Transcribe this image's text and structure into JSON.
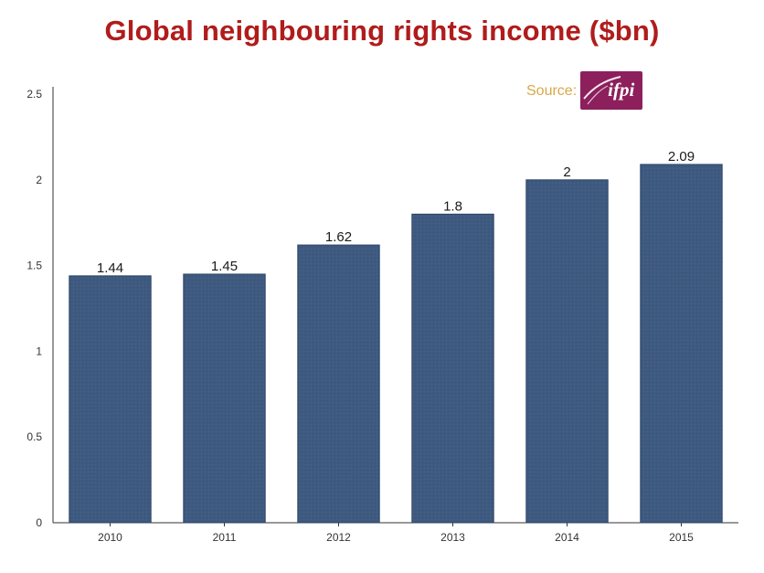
{
  "chart_data": {
    "type": "bar",
    "title": "Global neighbouring rights income ($bn)",
    "categories": [
      "2010",
      "2011",
      "2012",
      "2013",
      "2014",
      "2015"
    ],
    "values": [
      1.44,
      1.45,
      1.62,
      1.8,
      2,
      2.09
    ],
    "data_labels": [
      "1.44",
      "1.45",
      "1.62",
      "1.8",
      "2",
      "2.09"
    ],
    "y_ticks": [
      "0",
      "0.5",
      "1",
      "1.5",
      "2",
      "2.5"
    ],
    "ylim": [
      0,
      2.5
    ],
    "xlabel": "",
    "ylabel": "",
    "grid": false,
    "legend": "none"
  },
  "source": {
    "label": "Source:",
    "logo_text": "ifpi",
    "logo_name": "ifpi-logo"
  },
  "colors": {
    "title": "#b01c1c",
    "bar": "#3f5a80",
    "bar_edge": "#2c4263",
    "axis": "#333333",
    "tick_text": "#333333",
    "data_label_text": "#1a1a1a",
    "source_label": "#d9a84a",
    "logo_bg": "#8c1f5c",
    "logo_bg_light": "#a8417a"
  }
}
